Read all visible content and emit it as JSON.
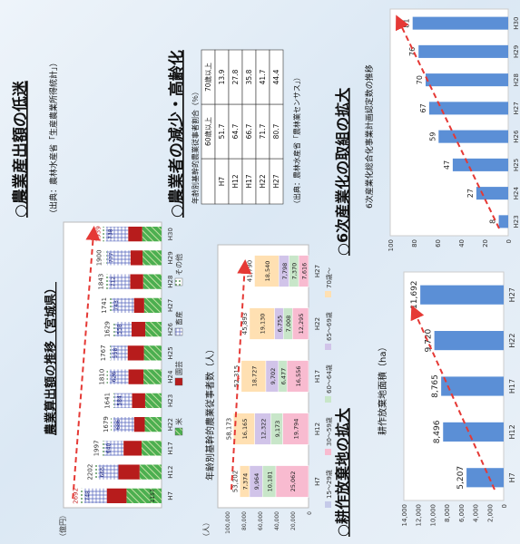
{
  "sections": {
    "s1_title": "○農業産出額の低迷",
    "s2_title": "○農業者の減少・高齢化",
    "s3_title": "○6次産業化の取組の拡大",
    "s4_title": "○耕作放棄地の拡大"
  },
  "chart_data": [
    {
      "id": "agri_output",
      "type": "bar",
      "title": "農業算出額の推移（宮城県）",
      "unit_label": "（億円）",
      "categories": [
        "H7",
        "H12",
        "H17",
        "H22",
        "H23",
        "H24",
        "H25",
        "H26",
        "H27",
        "H28",
        "H29",
        "H30"
      ],
      "series": [
        {
          "name": "米",
          "values": [
            1157,
            null,
            null,
            null,
            null,
            null,
            null,
            null,
            null,
            null,
            null,
            null
          ]
        },
        {
          "name": "園芸",
          "values": [
            null,
            null,
            null,
            null,
            null,
            null,
            null,
            null,
            null,
            null,
            null,
            null
          ]
        },
        {
          "name": "畜産",
          "values": [
            748,
            665,
            640,
            686,
            584,
            626,
            558,
            558,
            743,
            712,
            777,
            738
          ]
        },
        {
          "name": "その他",
          "values": [
            null,
            null,
            null,
            null,
            null,
            null,
            null,
            null,
            null,
            null,
            null,
            null
          ]
        }
      ],
      "totals": [
        2692,
        2202,
        1997,
        1679,
        1641,
        1810,
        1767,
        1629,
        1741,
        1843,
        1900,
        1939
      ],
      "ylim": [
        0,
        3000
      ],
      "source": "（出典：農林水産省「生産農業所得統計」）",
      "legend_labels": [
        "米",
        "園芸",
        "畜産",
        "その他"
      ]
    },
    {
      "id": "farmer_age",
      "type": "bar",
      "title": "年齢別基幹的農業従事者数（人）",
      "unit_label": "（人）",
      "yticks": [
        "0",
        "20,000",
        "40,000",
        "60,000",
        "80,000",
        "100,000"
      ],
      "categories": [
        "H7",
        "H12",
        "H17",
        "H22",
        "H27"
      ],
      "series": [
        {
          "name": "15～29歳",
          "values": [
            null,
            null,
            null,
            null,
            null
          ]
        },
        {
          "name": "30～59歳",
          "values": [
            25062,
            19794,
            16556,
            12295,
            7616
          ]
        },
        {
          "name": "60～64歳",
          "values": [
            10181,
            9173,
            6477,
            7008,
            7370
          ]
        },
        {
          "name": "65～69歳",
          "values": [
            9964,
            12322,
            9702,
            6755,
            7798
          ]
        },
        {
          "name": "70歳～",
          "values": [
            7374,
            16165,
            18727,
            19130,
            18540
          ]
        }
      ],
      "totals": [
        53202,
        58173,
        52315,
        45893,
        41790
      ],
      "legend_labels": [
        "15～29歳",
        "30～59歳",
        "60～64歳",
        "65～69歳",
        "70歳～"
      ],
      "ylim": [
        0,
        100000
      ]
    },
    {
      "id": "elderly_ratio",
      "type": "table",
      "title": "年齢別基幹的農業従事者割合（％）",
      "columns": [
        "",
        "60歳以上",
        "70歳以上"
      ],
      "rows": [
        [
          "H7",
          "51.7",
          "13.9"
        ],
        [
          "H12",
          "64.7",
          "27.8"
        ],
        [
          "H17",
          "66.7",
          "35.8"
        ],
        [
          "H22",
          "71.7",
          "41.7"
        ],
        [
          "H27",
          "80.7",
          "44.4"
        ]
      ],
      "source": "（出典：農林水産省「農林業センサス」）"
    },
    {
      "id": "abandoned_land",
      "type": "bar",
      "title": "耕作放棄地面積（ha）",
      "categories": [
        "H7",
        "H12",
        "H17",
        "H22",
        "H27"
      ],
      "values": [
        5207,
        8496,
        8765,
        9720,
        11692
      ],
      "yticks": [
        "0",
        "2,000",
        "4,000",
        "6,000",
        "8,000",
        "10,000",
        "12,000",
        "14,000"
      ],
      "ylim": [
        0,
        14000
      ],
      "source": "（出典：農林水産省「農林業センサス」）"
    },
    {
      "id": "sixth_industry",
      "type": "bar",
      "title": "6次産業化総合化事業計画認定数の推移",
      "categories": [
        "H23",
        "H24",
        "H25",
        "H26",
        "H27",
        "H28",
        "H29",
        "H30"
      ],
      "values": [
        8,
        27,
        47,
        59,
        67,
        70,
        76,
        81
      ],
      "yticks": [
        "0",
        "20",
        "40",
        "60",
        "80",
        "100"
      ],
      "ylim": [
        0,
        100
      ],
      "source": "（出典：東北農政局資料）"
    }
  ]
}
